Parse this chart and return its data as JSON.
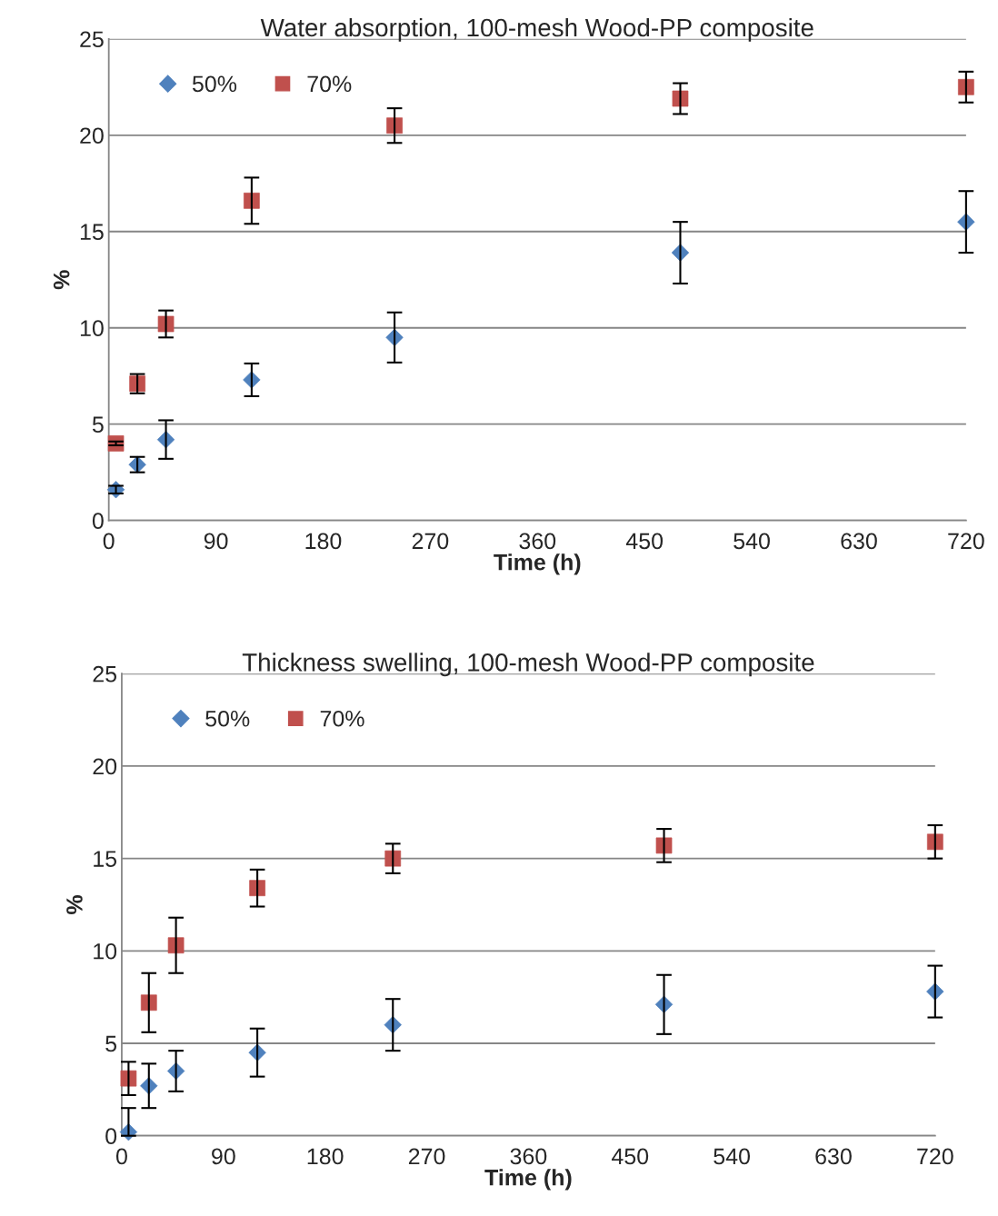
{
  "chart_data": [
    {
      "type": "scatter",
      "title": "Water absorption, 100-mesh Wood-PP composite",
      "xlabel": "Time (h)",
      "ylabel": "%",
      "x": [
        6,
        24,
        48,
        120,
        240,
        480,
        720
      ],
      "xlim": [
        0,
        720
      ],
      "xticks": [
        0,
        90,
        180,
        270,
        360,
        450,
        540,
        630,
        720
      ],
      "ylim": [
        0,
        25
      ],
      "yticks": [
        0,
        5,
        10,
        15,
        20,
        25
      ],
      "grid": "y",
      "legend": "top left",
      "series": [
        {
          "name": "50%",
          "color": "#4f81bd",
          "marker": "diamond",
          "values": [
            1.6,
            2.9,
            4.2,
            7.3,
            9.5,
            13.9,
            15.5
          ],
          "errors": [
            0.2,
            0.4,
            1.0,
            0.85,
            1.3,
            1.6,
            1.6
          ]
        },
        {
          "name": "70%",
          "color": "#c0504d",
          "marker": "square",
          "values": [
            4.0,
            7.1,
            10.2,
            16.6,
            20.5,
            21.9,
            22.5
          ],
          "errors": [
            0.1,
            0.5,
            0.7,
            1.2,
            0.9,
            0.8,
            0.8
          ]
        }
      ]
    },
    {
      "type": "scatter",
      "title": "Thickness swelling, 100-mesh Wood-PP composite",
      "xlabel": "Time (h)",
      "ylabel": "%",
      "x": [
        6,
        24,
        48,
        120,
        240,
        480,
        720
      ],
      "xlim": [
        0,
        720
      ],
      "xticks": [
        0,
        90,
        180,
        270,
        360,
        450,
        540,
        630,
        720
      ],
      "ylim": [
        0,
        25
      ],
      "yticks": [
        0,
        5,
        10,
        15,
        20,
        25
      ],
      "grid": "y",
      "legend": "top left",
      "series": [
        {
          "name": "50%",
          "color": "#4f81bd",
          "marker": "diamond",
          "values": [
            0.2,
            2.7,
            3.5,
            4.5,
            6.0,
            7.1,
            7.8
          ],
          "errors": [
            [
              0,
              1.5
            ],
            1.2,
            1.1,
            1.3,
            1.4,
            1.6,
            1.4
          ]
        },
        {
          "name": "70%",
          "color": "#c0504d",
          "marker": "square",
          "values": [
            3.1,
            7.2,
            10.3,
            13.4,
            15.0,
            15.7,
            15.9
          ],
          "errors": [
            0.9,
            1.6,
            1.5,
            1.0,
            0.8,
            0.9,
            0.9
          ]
        }
      ]
    }
  ]
}
